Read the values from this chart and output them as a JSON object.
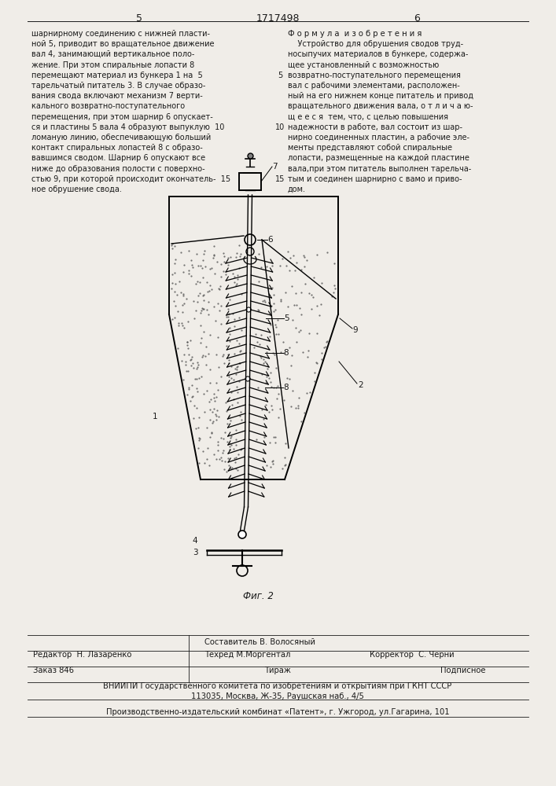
{
  "page_number_left": "5",
  "page_title_center": "1717498",
  "page_number_right": "6",
  "left_text": [
    "шарнирному соединению с нижней пласти-",
    "ной 5, приводит во вращательное движение",
    "вал 4, занимающий вертикальное поло-",
    "жение. При этом спиральные лопасти 8",
    "перемещают материал из бункера 1 на  5",
    "тарельчатый питатель 3. В случае образо-",
    "вания свода включают механизм 7 верти-",
    "кального возвратно-поступательного",
    "перемещения, при этом шарнир 6 опускает-",
    "ся и пластины 5 вала 4 образуют выпуклую  10",
    "ломаную линию, обеспечивающую больший",
    "контакт спиральных лопастей 8 с образо-",
    "вавшимся сводом. Шарнир 6 опускают все",
    "ниже до образования полости с поверхно-",
    "стью 9, при которой происходит окончатель-  15",
    "ное обрушение свода."
  ],
  "right_title": "Ф о р м у л а  и з о б р е т е н и я",
  "right_text": [
    "    Устройство для обрушения сводов труд-",
    "носыпучих материалов в бункере, содержа-",
    "щее установленный с возможностью",
    "возвратно-поступательного перемещения",
    "вал с рабочими элементами, расположен-",
    "ный на его нижнем конце питатель и привод",
    "вращательного движения вала, о т л и ч а ю-",
    "щ е е с я  тем, что, с целью повышения",
    "надежности в работе, вал состоит из шар-",
    "нирно соединенных пластин, а рабочие эле-",
    "менты представляют собой спиральные",
    "лопасти, размещенные на каждой пластине",
    "вала,при этом питатель выполнен тарельча-",
    "тым и соединен шарнирно с вамо и приво-",
    "дом."
  ],
  "fig_caption": "Фиг. 2",
  "editor_label": "Редактор",
  "editor_name": "Н. Лазаренко",
  "composer_label": "Составитель",
  "composer_name": "В. Волосяный",
  "techred_label": "Техред",
  "techred_name": "М.Моргентал",
  "corrector_label": "Корректор",
  "corrector_name": "С. Черни",
  "order_label": "Заказ 846",
  "tirazh_label": "Тираж",
  "podpisnoe_label": "Подписное",
  "vniiipi_text": "ВНИИПИ Государственного комитета по изобретениям и открытиям при ГКНТ СССР",
  "address_text": "113035, Москва, Ж-35, Раушская наб., 4/5",
  "print_text": "Производственно-издательский комбинат «Патент», г. Ужгород, ул.Гагарина, 101",
  "bg_color": "#f0ede8",
  "text_color": "#1a1a1a",
  "line_numbers": [
    "5",
    "10",
    "15"
  ]
}
